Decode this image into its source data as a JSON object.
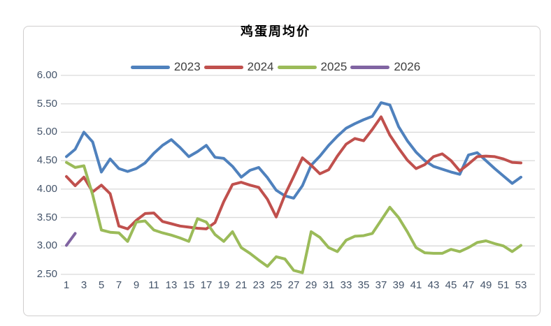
{
  "chart_data": {
    "type": "line",
    "title": "鸡蛋周均价",
    "legend_position": "top-center",
    "grid": "horizontal",
    "ylim": [
      2.5,
      6.0
    ],
    "y_tick_labels": [
      "6.00",
      "5.50",
      "5.00",
      "4.50",
      "4.00",
      "3.50",
      "3.00",
      "2.50"
    ],
    "x_tick_labels": [
      "1",
      "3",
      "5",
      "7",
      "9",
      "11",
      "13",
      "15",
      "17",
      "19",
      "21",
      "23",
      "25",
      "27",
      "29",
      "31",
      "33",
      "35",
      "37",
      "39",
      "41",
      "43",
      "45",
      "47",
      "49",
      "51",
      "53"
    ],
    "x_unit": "week",
    "x_range": [
      1,
      53
    ],
    "title_color": "#000000",
    "legend_text_color": "#404040",
    "axis_text_color": "#44546a",
    "grid_color": "#d9d9d9",
    "series": [
      {
        "name": "2023",
        "color": "#4f81bd",
        "values": [
          4.57,
          4.7,
          5.0,
          4.83,
          4.3,
          4.53,
          4.36,
          4.31,
          4.36,
          4.46,
          4.63,
          4.77,
          4.87,
          4.73,
          4.57,
          4.66,
          4.77,
          4.56,
          4.54,
          4.4,
          4.21,
          4.33,
          4.38,
          4.2,
          3.98,
          3.88,
          3.84,
          4.06,
          4.42,
          4.58,
          4.77,
          4.93,
          5.07,
          5.15,
          5.22,
          5.28,
          5.52,
          5.48,
          5.1,
          4.85,
          4.65,
          4.5,
          4.4,
          4.35,
          4.3,
          4.26,
          4.6,
          4.64,
          4.5,
          4.36,
          4.23,
          4.1,
          4.21
        ]
      },
      {
        "name": "2024",
        "color": "#c0504d",
        "values": [
          4.22,
          4.06,
          4.21,
          3.95,
          4.07,
          3.92,
          3.35,
          3.3,
          3.45,
          3.57,
          3.58,
          3.43,
          3.39,
          3.35,
          3.33,
          3.31,
          3.3,
          3.41,
          3.78,
          4.08,
          4.12,
          4.07,
          4.03,
          3.82,
          3.51,
          3.9,
          4.22,
          4.55,
          4.42,
          4.27,
          4.34,
          4.58,
          4.79,
          4.89,
          4.85,
          5.05,
          5.27,
          4.95,
          4.72,
          4.51,
          4.36,
          4.43,
          4.57,
          4.62,
          4.5,
          4.32,
          4.44,
          4.57,
          4.58,
          4.57,
          4.53,
          4.47,
          4.46
        ]
      },
      {
        "name": "2025",
        "color": "#9bbb59",
        "values": [
          4.47,
          4.38,
          4.41,
          3.9,
          3.28,
          3.24,
          3.23,
          3.08,
          3.42,
          3.44,
          3.28,
          3.23,
          3.19,
          3.14,
          3.08,
          3.48,
          3.42,
          3.2,
          3.08,
          3.25,
          2.97,
          2.87,
          2.75,
          2.64,
          2.81,
          2.77,
          2.57,
          2.53,
          3.25,
          3.15,
          2.97,
          2.9,
          3.1,
          3.17,
          3.18,
          3.22,
          3.45,
          3.68,
          3.5,
          3.25,
          2.97,
          2.88,
          2.87,
          2.87,
          2.94,
          2.9,
          2.97,
          3.06,
          3.09,
          3.04,
          3.0,
          2.9,
          3.01
        ]
      },
      {
        "name": "2026",
        "color": "#8064a2",
        "values": [
          3.01,
          3.22,
          null,
          null,
          null,
          null,
          null,
          null,
          null,
          null,
          null,
          null,
          null,
          null,
          null,
          null,
          null,
          null,
          null,
          null,
          null,
          null,
          null,
          null,
          null,
          null,
          null,
          null,
          null,
          null,
          null,
          null,
          null,
          null,
          null,
          null,
          null,
          null,
          null,
          null,
          null,
          null,
          null,
          null,
          null,
          null,
          null,
          null,
          null,
          null,
          null,
          null,
          null
        ]
      }
    ]
  }
}
